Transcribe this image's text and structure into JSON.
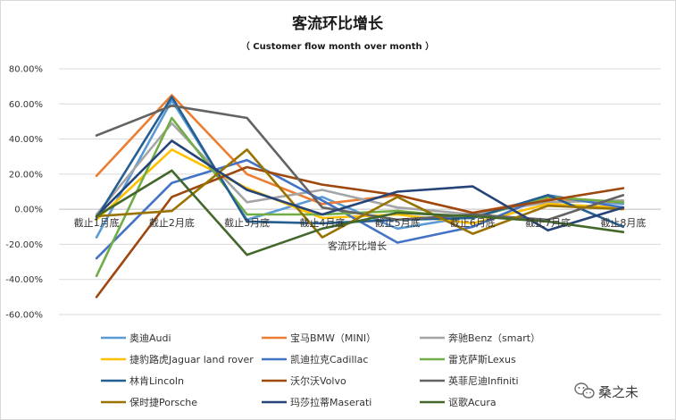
{
  "chart_data": {
    "type": "line",
    "title": "客流环比增长",
    "subtitle": "（ Customer flow month over month ）",
    "xlabel": "客流环比增长",
    "ylabel": "",
    "categories": [
      "截止1月底",
      "截止2月底",
      "截止3月底",
      "截止4月底",
      "截止5月底",
      "截止6月底",
      "截止7月底",
      "截止8月底"
    ],
    "ylim": [
      -0.6,
      0.8
    ],
    "ytick_labels": [
      "-60.00%",
      "-40.00%",
      "-20.00%",
      "0.00%",
      "20.00%",
      "40.00%",
      "60.00%",
      "80.00%"
    ],
    "ytick_values": [
      -0.6,
      -0.4,
      -0.2,
      0.0,
      0.2,
      0.4,
      0.6,
      0.8
    ],
    "grid": true,
    "legend_position": "bottom",
    "series": [
      {
        "name": "奥迪Audi",
        "color": "#5b9bd5",
        "values": [
          -0.16,
          0.62,
          -0.06,
          0.07,
          -0.11,
          -0.04,
          0.07,
          0.03
        ]
      },
      {
        "name": "宝马BMW（MINI）",
        "color": "#ed7d31",
        "values": [
          0.19,
          0.65,
          0.2,
          0.03,
          0.08,
          -0.02,
          0.06,
          0.04
        ]
      },
      {
        "name": "奔驰Benz（smart）",
        "color": "#a5a5a5",
        "values": [
          -0.03,
          0.49,
          0.04,
          0.11,
          0.01,
          -0.03,
          0.04,
          0.05
        ]
      },
      {
        "name": "捷豹路虎Jaguar land rover",
        "color": "#ffc000",
        "values": [
          -0.06,
          0.34,
          0.12,
          -0.05,
          -0.03,
          -0.08,
          0.03,
          0.01
        ]
      },
      {
        "name": "凯迪拉克Cadillac",
        "color": "#4472c4",
        "values": [
          -0.28,
          0.15,
          0.28,
          0.05,
          -0.19,
          -0.1,
          0.08,
          0.01
        ]
      },
      {
        "name": "雷克萨斯Lexus",
        "color": "#70ad47",
        "values": [
          -0.38,
          0.52,
          -0.03,
          -0.03,
          -0.01,
          -0.05,
          0.07,
          0.04
        ]
      },
      {
        "name": "林肯Lincoln",
        "color": "#255e91",
        "values": [
          -0.05,
          0.64,
          -0.07,
          -0.08,
          -0.06,
          -0.05,
          0.08,
          -0.1
        ]
      },
      {
        "name": "沃尔沃Volvo",
        "color": "#9e480e",
        "values": [
          -0.5,
          0.07,
          0.24,
          0.14,
          0.08,
          -0.02,
          0.05,
          0.12
        ]
      },
      {
        "name": "英菲尼迪Infiniti",
        "color": "#636363",
        "values": [
          0.42,
          0.59,
          0.52,
          0.01,
          -0.06,
          -0.03,
          -0.06,
          0.08
        ]
      },
      {
        "name": "保时捷Porsche",
        "color": "#997300",
        "values": [
          -0.04,
          -0.01,
          0.34,
          -0.16,
          0.07,
          -0.14,
          0.02,
          0.0
        ]
      },
      {
        "name": "玛莎拉蒂Maserati",
        "color": "#264478",
        "values": [
          -0.04,
          0.39,
          0.11,
          -0.03,
          0.1,
          0.13,
          -0.12,
          0.01
        ]
      },
      {
        "name": "讴歌Acura",
        "color": "#43682b",
        "values": [
          -0.04,
          0.22,
          -0.26,
          -0.11,
          -0.02,
          -0.04,
          -0.07,
          -0.13
        ]
      }
    ]
  },
  "watermark": {
    "text": "桑之未",
    "icon": "wechat-icon"
  },
  "colors": {
    "grid": "#d9d9d9",
    "axis": "#bfbfbf",
    "frame": "#d9d9d9"
  }
}
